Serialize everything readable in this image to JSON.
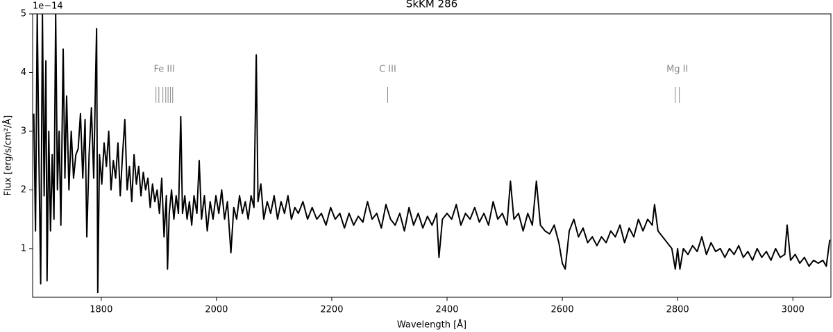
{
  "chart_data": {
    "type": "line",
    "title": "SkKM 286",
    "xlabel": "Wavelength [Å]",
    "ylabel": "Flux [erg/s/cm²/Å]",
    "y_offset_label": "1e−14",
    "color": "#000000",
    "xlim": [
      1681,
      3066
    ],
    "ylim": [
      0.17,
      5
    ],
    "xticks": [
      1800,
      2000,
      2200,
      2400,
      2600,
      2800,
      3000
    ],
    "yticks": [
      1,
      2,
      3,
      4,
      5
    ],
    "annotations": [
      {
        "label": "Fe III",
        "lines": [
          1895,
          1900,
          1907,
          1912,
          1916,
          1920,
          1924
        ]
      },
      {
        "label": "C III",
        "lines": [
          2297
        ]
      },
      {
        "label": "Mg II",
        "lines": [
          2796,
          2803
        ]
      }
    ],
    "annotation_color": "#888888",
    "x": [
      1683,
      1686,
      1689,
      1692,
      1695,
      1698,
      1701,
      1704,
      1706,
      1709,
      1712,
      1715,
      1718,
      1721,
      1724,
      1727,
      1730,
      1734,
      1737,
      1740,
      1744,
      1748,
      1752,
      1756,
      1760,
      1764,
      1768,
      1772,
      1775,
      1779,
      1783,
      1787,
      1790,
      1792,
      1794,
      1797,
      1801,
      1805,
      1809,
      1813,
      1817,
      1821,
      1825,
      1829,
      1833,
      1837,
      1841,
      1845,
      1849,
      1853,
      1857,
      1861,
      1865,
      1869,
      1873,
      1877,
      1881,
      1885,
      1889,
      1893,
      1897,
      1901,
      1905,
      1909,
      1913,
      1915,
      1918,
      1922,
      1926,
      1930,
      1934,
      1938,
      1941,
      1945,
      1949,
      1953,
      1957,
      1961,
      1966,
      1970,
      1974,
      1979,
      1984,
      1989,
      1994,
      1999,
      2004,
      2009,
      2014,
      2019,
      2025,
      2030,
      2035,
      2040,
      2045,
      2050,
      2055,
      2060,
      2065,
      2069,
      2072,
      2077,
      2082,
      2088,
      2094,
      2100,
      2106,
      2112,
      2118,
      2124,
      2130,
      2136,
      2142,
      2150,
      2158,
      2166,
      2174,
      2182,
      2190,
      2198,
      2206,
      2214,
      2222,
      2230,
      2238,
      2246,
      2254,
      2262,
      2270,
      2278,
      2286,
      2294,
      2302,
      2310,
      2318,
      2326,
      2334,
      2342,
      2350,
      2358,
      2366,
      2374,
      2382,
      2386,
      2392,
      2400,
      2408,
      2416,
      2424,
      2432,
      2440,
      2448,
      2456,
      2464,
      2472,
      2480,
      2488,
      2496,
      2504,
      2510,
      2516,
      2524,
      2532,
      2540,
      2548,
      2555,
      2562,
      2570,
      2578,
      2586,
      2594,
      2600,
      2605,
      2612,
      2620,
      2628,
      2636,
      2644,
      2652,
      2660,
      2668,
      2676,
      2684,
      2692,
      2700,
      2708,
      2716,
      2724,
      2732,
      2740,
      2748,
      2756,
      2760,
      2766,
      2774,
      2782,
      2790,
      2796,
      2800,
      2804,
      2810,
      2818,
      2826,
      2834,
      2842,
      2850,
      2858,
      2866,
      2874,
      2882,
      2890,
      2898,
      2906,
      2914,
      2922,
      2930,
      2938,
      2946,
      2954,
      2962,
      2970,
      2978,
      2986,
      2990,
      2996,
      3004,
      3012,
      3020,
      3028,
      3036,
      3044,
      3052,
      3058,
      3064
    ],
    "values": [
      3.3,
      1.3,
      5.0,
      2.5,
      0.4,
      5.0,
      1.9,
      4.2,
      0.45,
      3.0,
      1.3,
      2.6,
      1.5,
      5.0,
      2.0,
      3.0,
      1.4,
      4.4,
      2.2,
      3.6,
      2.0,
      3.0,
      2.2,
      2.6,
      2.7,
      3.3,
      2.2,
      3.2,
      1.2,
      2.6,
      3.4,
      2.2,
      3.8,
      4.75,
      0.25,
      2.6,
      2.1,
      2.8,
      2.4,
      3.0,
      2.0,
      2.5,
      2.2,
      2.8,
      1.9,
      2.6,
      3.2,
      2.0,
      2.4,
      1.8,
      2.6,
      2.1,
      2.4,
      1.9,
      2.3,
      2.0,
      2.2,
      1.7,
      2.1,
      1.8,
      2.0,
      1.6,
      2.2,
      1.2,
      1.9,
      0.65,
      1.6,
      2.0,
      1.5,
      1.9,
      1.6,
      3.25,
      1.6,
      1.9,
      1.5,
      1.8,
      1.4,
      1.9,
      1.6,
      2.5,
      1.5,
      1.9,
      1.3,
      1.8,
      1.5,
      1.9,
      1.6,
      2.0,
      1.5,
      1.8,
      0.93,
      1.7,
      1.5,
      1.9,
      1.6,
      1.8,
      1.5,
      1.9,
      1.7,
      4.3,
      1.8,
      2.1,
      1.5,
      1.8,
      1.6,
      1.9,
      1.5,
      1.8,
      1.6,
      1.9,
      1.5,
      1.7,
      1.6,
      1.8,
      1.5,
      1.7,
      1.5,
      1.6,
      1.4,
      1.7,
      1.5,
      1.6,
      1.35,
      1.6,
      1.4,
      1.55,
      1.45,
      1.8,
      1.5,
      1.6,
      1.35,
      1.75,
      1.5,
      1.4,
      1.6,
      1.3,
      1.7,
      1.4,
      1.6,
      1.35,
      1.55,
      1.4,
      1.6,
      0.85,
      1.5,
      1.6,
      1.5,
      1.75,
      1.4,
      1.6,
      1.5,
      1.7,
      1.45,
      1.6,
      1.4,
      1.8,
      1.5,
      1.6,
      1.4,
      2.15,
      1.5,
      1.6,
      1.3,
      1.6,
      1.4,
      2.15,
      1.4,
      1.3,
      1.25,
      1.4,
      1.1,
      0.75,
      0.65,
      1.3,
      1.5,
      1.2,
      1.35,
      1.1,
      1.2,
      1.05,
      1.2,
      1.1,
      1.3,
      1.2,
      1.4,
      1.1,
      1.35,
      1.2,
      1.5,
      1.3,
      1.5,
      1.4,
      1.75,
      1.3,
      1.2,
      1.1,
      1.0,
      0.65,
      1.0,
      0.65,
      1.0,
      0.9,
      1.05,
      0.95,
      1.2,
      0.9,
      1.1,
      0.95,
      1.0,
      0.85,
      1.0,
      0.9,
      1.05,
      0.85,
      0.95,
      0.8,
      1.0,
      0.85,
      0.95,
      0.8,
      1.0,
      0.85,
      0.9,
      1.4,
      0.8,
      0.9,
      0.75,
      0.85,
      0.7,
      0.8,
      0.75,
      0.8,
      0.7,
      1.15
    ]
  }
}
